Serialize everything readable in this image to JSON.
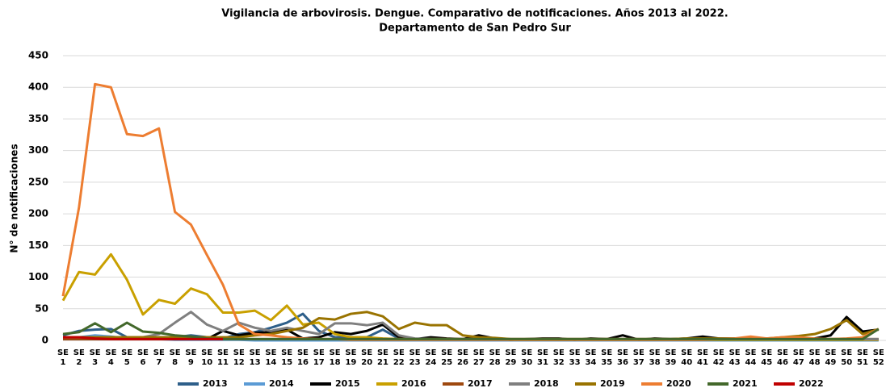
{
  "chart_data": {
    "type": "line",
    "title": "Vigilancia de arbovirosis. Dengue. Comparativo de notificaciones. Años 2013 al 2022.",
    "subtitle": "Departamento de San Pedro Sur",
    "y_label": "N° de notificaciones",
    "categories": [
      "SE 1",
      "SE 2",
      "SE 3",
      "SE 4",
      "SE 5",
      "SE 6",
      "SE 7",
      "SE 8",
      "SE 9",
      "SE 10",
      "SE 11",
      "SE 12",
      "SE 13",
      "SE 14",
      "SE 15",
      "SE 16",
      "SE 17",
      "SE 18",
      "SE 19",
      "SE 20",
      "SE 21",
      "SE 22",
      "SE 23",
      "SE 24",
      "SE 25",
      "SE 26",
      "SE 27",
      "SE 28",
      "SE 29",
      "SE 30",
      "SE 31",
      "SE 32",
      "SE 33",
      "SE 34",
      "SE 35",
      "SE 36",
      "SE 37",
      "SE 38",
      "SE 39",
      "SE 40",
      "SE 41",
      "SE 42",
      "SE 43",
      "SE 44",
      "SE 45",
      "SE 46",
      "SE 47",
      "SE 48",
      "SE 49",
      "SE 50",
      "SE 51",
      "SE 52"
    ],
    "ylim": [
      0,
      450
    ],
    "yticks": [
      0,
      50,
      100,
      150,
      200,
      250,
      300,
      350,
      400,
      450
    ],
    "grid": true,
    "series": [
      {
        "name": "2013",
        "color": "#2e5f8a",
        "values": [
          8,
          15,
          17,
          18,
          5,
          3,
          5,
          5,
          8,
          5,
          3,
          10,
          13,
          20,
          28,
          42,
          15,
          5,
          5,
          5,
          17,
          3,
          1,
          1,
          1,
          1,
          1,
          1,
          1,
          1,
          1,
          1,
          1,
          1,
          1,
          1,
          1,
          1,
          1,
          1,
          1,
          1,
          1,
          1,
          1,
          1,
          1,
          1,
          1,
          1,
          1,
          1
        ]
      },
      {
        "name": "2014",
        "color": "#5b9bd5",
        "values": [
          5,
          5,
          8,
          6,
          3,
          2,
          2,
          1,
          1,
          1,
          1,
          1,
          0,
          0,
          0,
          0,
          0,
          0,
          0,
          0,
          0,
          0,
          0,
          0,
          0,
          0,
          0,
          0,
          0,
          0,
          0,
          0,
          0,
          0,
          0,
          0,
          0,
          0,
          0,
          0,
          0,
          0,
          0,
          0,
          0,
          0,
          0,
          0,
          0,
          0,
          0,
          0
        ]
      },
      {
        "name": "2015",
        "color": "#000000",
        "values": [
          2,
          2,
          2,
          2,
          2,
          2,
          2,
          2,
          2,
          2,
          15,
          8,
          12,
          13,
          17,
          3,
          5,
          13,
          10,
          15,
          25,
          5,
          2,
          5,
          3,
          2,
          8,
          3,
          1,
          2,
          3,
          3,
          1,
          3,
          2,
          8,
          1,
          3,
          2,
          3,
          6,
          3,
          3,
          3,
          2,
          2,
          2,
          3,
          8,
          37,
          14,
          17
        ]
      },
      {
        "name": "2016",
        "color": "#c9a000",
        "values": [
          63,
          108,
          104,
          136,
          96,
          41,
          64,
          58,
          82,
          73,
          44,
          44,
          47,
          32,
          55,
          25,
          28,
          10,
          5,
          5,
          3,
          2,
          2,
          2,
          2,
          2,
          2,
          2,
          1,
          1,
          1,
          1,
          1,
          1,
          1,
          1,
          1,
          1,
          1,
          1,
          1,
          1,
          1,
          1,
          1,
          1,
          1,
          1,
          1,
          1,
          1,
          1
        ]
      },
      {
        "name": "2017",
        "color": "#9e480e",
        "values": [
          2,
          2,
          2,
          2,
          2,
          2,
          2,
          2,
          2,
          2,
          2,
          2,
          2,
          2,
          2,
          2,
          2,
          2,
          2,
          2,
          2,
          2,
          2,
          2,
          2,
          2,
          2,
          2,
          2,
          2,
          2,
          2,
          2,
          2,
          2,
          2,
          2,
          2,
          2,
          2,
          2,
          2,
          2,
          2,
          2,
          2,
          2,
          2,
          2,
          2,
          2,
          2
        ]
      },
      {
        "name": "2018",
        "color": "#7f7f7f",
        "values": [
          5,
          5,
          5,
          5,
          5,
          5,
          10,
          28,
          45,
          25,
          15,
          28,
          20,
          15,
          20,
          15,
          10,
          27,
          27,
          24,
          28,
          8,
          3,
          2,
          2,
          2,
          2,
          2,
          2,
          2,
          2,
          2,
          2,
          2,
          2,
          2,
          2,
          2,
          2,
          2,
          2,
          2,
          2,
          2,
          2,
          2,
          2,
          2,
          2,
          2,
          2,
          2
        ]
      },
      {
        "name": "2019",
        "color": "#997300",
        "values": [
          5,
          5,
          5,
          5,
          5,
          5,
          5,
          5,
          5,
          5,
          5,
          5,
          8,
          10,
          15,
          20,
          35,
          33,
          42,
          45,
          38,
          18,
          28,
          24,
          24,
          8,
          5,
          4,
          2,
          2,
          2,
          2,
          2,
          2,
          2,
          2,
          2,
          2,
          2,
          3,
          3,
          3,
          3,
          3,
          3,
          5,
          7,
          10,
          18,
          32,
          10,
          18
        ]
      },
      {
        "name": "2020",
        "color": "#ed7d31",
        "values": [
          70,
          210,
          405,
          400,
          326,
          323,
          335,
          203,
          183,
          135,
          88,
          25,
          10,
          8,
          5,
          3,
          2,
          2,
          1,
          1,
          1,
          1,
          1,
          1,
          1,
          1,
          1,
          1,
          1,
          1,
          1,
          1,
          1,
          1,
          1,
          1,
          1,
          1,
          1,
          1,
          1,
          2,
          3,
          6,
          3,
          5,
          5,
          3,
          2,
          3,
          5,
          18
        ]
      },
      {
        "name": "2021",
        "color": "#43682b",
        "values": [
          10,
          13,
          27,
          13,
          28,
          14,
          12,
          8,
          6,
          3,
          2,
          2,
          2,
          2,
          2,
          2,
          2,
          2,
          2,
          2,
          2,
          2,
          2,
          2,
          2,
          2,
          2,
          2,
          2,
          2,
          2,
          2,
          2,
          2,
          2,
          2,
          2,
          2,
          2,
          2,
          2,
          2,
          2,
          2,
          2,
          2,
          2,
          2,
          2,
          2,
          2,
          18
        ]
      },
      {
        "name": "2022",
        "color": "#c00000",
        "values": [
          5,
          5,
          3,
          2,
          2,
          2,
          2,
          2,
          2,
          2,
          2,
          null,
          null,
          null,
          null,
          null,
          null,
          null,
          null,
          null,
          null,
          null,
          null,
          null,
          null,
          null,
          null,
          null,
          null,
          null,
          null,
          null,
          null,
          null,
          null,
          null,
          null,
          null,
          null,
          null,
          null,
          null,
          null,
          null,
          null,
          null,
          null,
          null,
          null,
          null,
          null,
          null
        ]
      }
    ]
  }
}
